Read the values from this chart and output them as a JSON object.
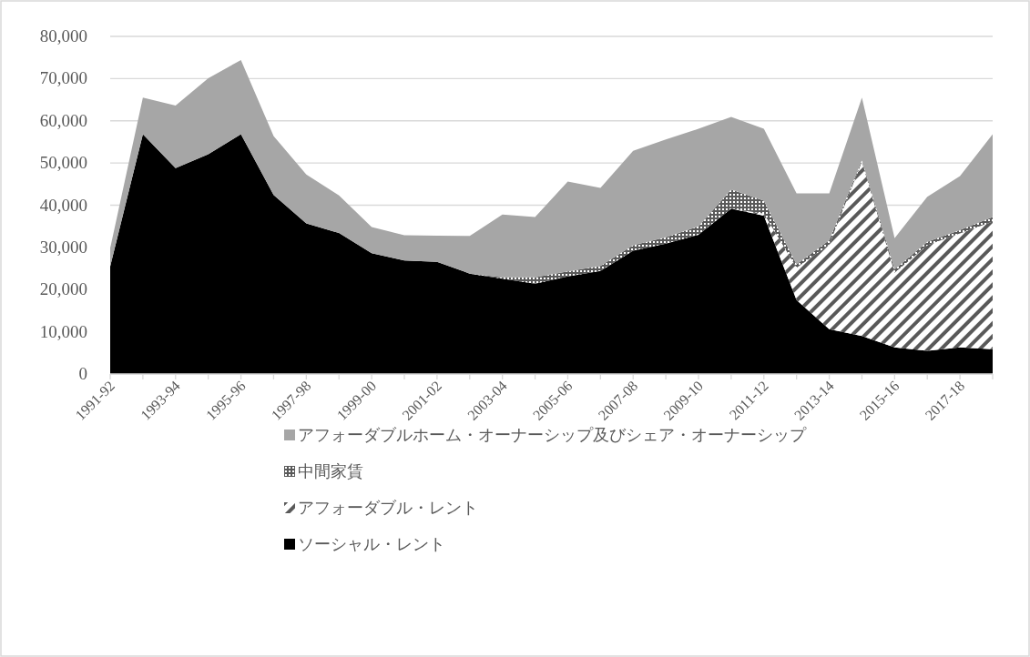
{
  "chart_data": {
    "type": "area",
    "stacked": true,
    "categories": [
      "1991-92",
      null,
      "1993-94",
      null,
      "1995-96",
      null,
      "1997-98",
      null,
      "1999-00",
      null,
      "2001-02",
      null,
      "2003-04",
      null,
      "2005-06",
      null,
      "2007-08",
      null,
      "2009-10",
      null,
      "2011-12",
      null,
      "2013-14",
      null,
      "2015-16",
      null,
      "2017-18",
      null
    ],
    "series": [
      {
        "name": "ソーシャル・レント",
        "color": "#000000",
        "values": [
          25500,
          56800,
          48800,
          52100,
          56800,
          42400,
          35700,
          33400,
          28600,
          26900,
          26600,
          23800,
          22600,
          21400,
          23100,
          24400,
          29200,
          30900,
          33000,
          39200,
          37500,
          17500,
          10600,
          9000,
          6300,
          5500,
          6300,
          5900
        ]
      },
      {
        "name": "アフォーダブル・レント",
        "color": "#595959",
        "values": [
          0,
          0,
          0,
          0,
          0,
          0,
          0,
          0,
          0,
          0,
          0,
          0,
          0,
          0,
          0,
          0,
          0,
          0,
          0,
          0,
          500,
          7700,
          20100,
          41300,
          17700,
          25000,
          27000,
          30200
        ]
      },
      {
        "name": "中間家賃",
        "color": "#5a5a5a",
        "values": [
          0,
          0,
          0,
          0,
          0,
          0,
          0,
          0,
          0,
          0,
          0,
          0,
          300,
          1500,
          1200,
          1200,
          1300,
          1500,
          2000,
          4500,
          3100,
          800,
          1000,
          400,
          800,
          800,
          800,
          1100
        ]
      },
      {
        "name": "アフォーダブルホーム・オーナーシップ及びシェア・オーナーシップ",
        "color": "#a6a6a6",
        "values": [
          4300,
          8700,
          14800,
          18000,
          17600,
          14000,
          11600,
          8900,
          6200,
          6000,
          6200,
          8900,
          14900,
          14300,
          21300,
          18500,
          22400,
          23200,
          23100,
          17200,
          17000,
          16800,
          11100,
          14800,
          7400,
          10700,
          12800,
          19600
        ]
      }
    ],
    "ylim": [
      0,
      80000
    ],
    "yticks": [
      0,
      {
        "value": 10000,
        "label": "10,000"
      },
      {
        "value": 20000,
        "label": "20,000"
      },
      {
        "value": 30000,
        "label": "30,000"
      },
      {
        "value": 40000,
        "label": "40,000"
      },
      {
        "value": 50000,
        "label": "50,000"
      },
      {
        "value": 60000,
        "label": "60,000"
      },
      {
        "value": 70000,
        "label": "70,000"
      },
      {
        "value": 80000,
        "label": "80,000"
      }
    ],
    "grid": "y",
    "legend": "bottom"
  }
}
